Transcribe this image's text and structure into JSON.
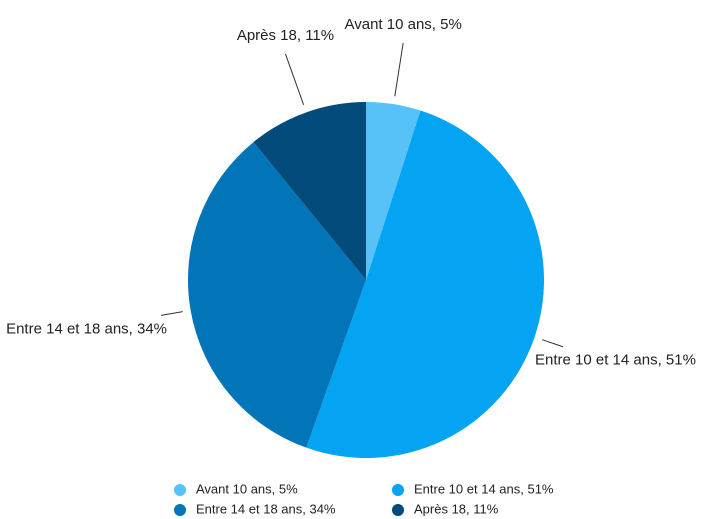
{
  "chart_data": {
    "type": "pie",
    "categories": [
      "Avant 10 ans",
      "Entre 10 et 14 ans",
      "Entre 14 et 18 ans",
      "Après 18"
    ],
    "values": [
      5,
      51,
      34,
      11
    ],
    "value_labels": [
      "Avant 10 ans, 5%",
      "Entre 10 et 14 ans, 51%",
      "Entre 14 et 18 ans, 34%",
      "Après 18, 11%"
    ],
    "colors": [
      "#56c2f7",
      "#04a4f2",
      "#0275b8",
      "#024b7a"
    ],
    "legend": "bottom"
  }
}
